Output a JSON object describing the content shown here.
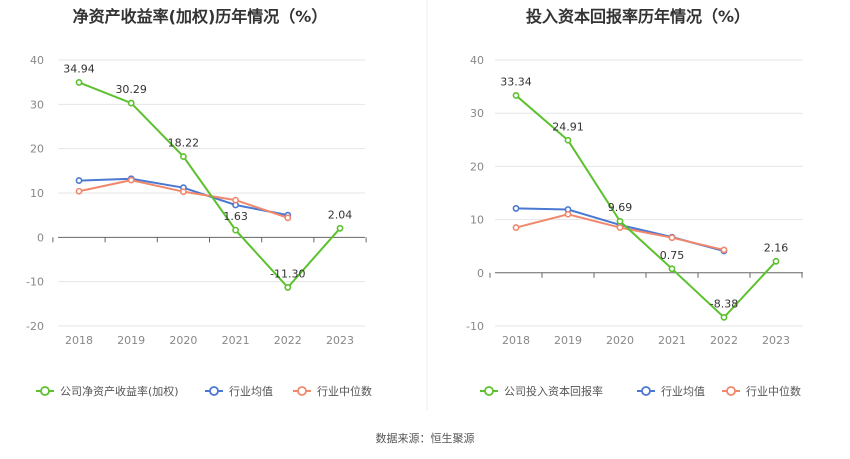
{
  "source": "数据来源：恒生聚源",
  "colors": {
    "company": "#5cc12e",
    "avg": "#4a78d2",
    "median": "#f1876b",
    "grid": "#e6e6e6",
    "axis": "#666666"
  },
  "chart_data": [
    {
      "type": "line",
      "title": "净资产收益率(加权)历年情况（%）",
      "categories": [
        "2018",
        "2019",
        "2020",
        "2021",
        "2022",
        "2023"
      ],
      "ylim": [
        -20,
        40
      ],
      "yticks": [
        "-20",
        "-10",
        "0",
        "10",
        "20",
        "30",
        "40"
      ],
      "grid": true,
      "legend_position": "bottom",
      "series": [
        {
          "name": "公司净资产收益率(加权)",
          "values": [
            34.94,
            30.29,
            18.22,
            1.63,
            -11.3,
            2.04
          ],
          "labels": [
            "34.94",
            "30.29",
            "18.22",
            "1.63",
            "-11.30",
            "2.04"
          ]
        },
        {
          "name": "行业均值",
          "values": [
            12.8,
            13.2,
            11.2,
            7.3,
            5.0,
            null
          ]
        },
        {
          "name": "行业中位数",
          "values": [
            10.4,
            12.9,
            10.3,
            8.4,
            4.4,
            null
          ]
        }
      ]
    },
    {
      "type": "line",
      "title": "投入资本回报率历年情况（%）",
      "categories": [
        "2018",
        "2019",
        "2020",
        "2021",
        "2022",
        "2023"
      ],
      "ylim": [
        -10,
        40
      ],
      "yticks": [
        "-10",
        "0",
        "10",
        "20",
        "30",
        "40"
      ],
      "grid": true,
      "legend_position": "bottom",
      "series": [
        {
          "name": "公司投入资本回报率",
          "values": [
            33.34,
            24.91,
            9.69,
            0.75,
            -8.38,
            2.16
          ],
          "labels": [
            "33.34",
            "24.91",
            "9.69",
            "0.75",
            "-8.38",
            "2.16"
          ]
        },
        {
          "name": "行业均值",
          "values": [
            12.1,
            11.9,
            9.0,
            6.7,
            4.1,
            null
          ]
        },
        {
          "name": "行业中位数",
          "values": [
            8.5,
            11.0,
            8.5,
            6.6,
            4.3,
            null
          ]
        }
      ]
    }
  ]
}
